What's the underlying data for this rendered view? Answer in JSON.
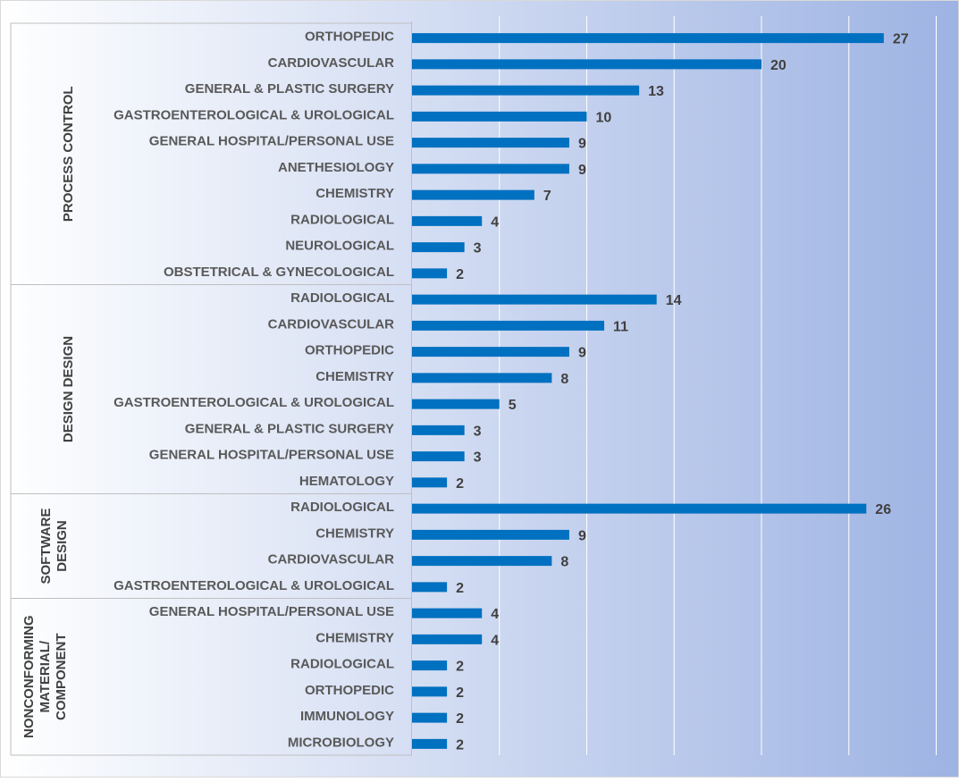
{
  "chart_data": {
    "type": "bar",
    "orientation": "horizontal",
    "grid": true,
    "xlim": [
      0,
      30
    ],
    "colors": {
      "bar": "#0070C0",
      "background_start": "#ffffff",
      "background_end": "#9DB3E3",
      "gridline": "#ffffff",
      "divider": "#BFBFBF"
    },
    "groups": [
      {
        "name": "PROCESS CONTROL",
        "items": [
          {
            "label": "ORTHOPEDIC",
            "value": 27
          },
          {
            "label": "CARDIOVASCULAR",
            "value": 20
          },
          {
            "label": "GENERAL & PLASTIC SURGERY",
            "value": 13
          },
          {
            "label": "GASTROENTEROLOGICAL & UROLOGICAL",
            "value": 10
          },
          {
            "label": "GENERAL HOSPITAL/PERSONAL USE",
            "value": 9
          },
          {
            "label": "ANETHESIOLOGY",
            "value": 9
          },
          {
            "label": "CHEMISTRY",
            "value": 7
          },
          {
            "label": "RADIOLOGICAL",
            "value": 4
          },
          {
            "label": "NEUROLOGICAL",
            "value": 3
          },
          {
            "label": "OBSTETRICAL & GYNECOLOGICAL",
            "value": 2
          }
        ]
      },
      {
        "name": "DESIGN DESIGN",
        "items": [
          {
            "label": "RADIOLOGICAL",
            "value": 14
          },
          {
            "label": "CARDIOVASCULAR",
            "value": 11
          },
          {
            "label": "ORTHOPEDIC",
            "value": 9
          },
          {
            "label": "CHEMISTRY",
            "value": 8
          },
          {
            "label": "GASTROENTEROLOGICAL & UROLOGICAL",
            "value": 5
          },
          {
            "label": "GENERAL & PLASTIC SURGERY",
            "value": 3
          },
          {
            "label": "GENERAL HOSPITAL/PERSONAL USE",
            "value": 3
          },
          {
            "label": "HEMATOLOGY",
            "value": 2
          }
        ]
      },
      {
        "name": "SOFTWARE DESIGN",
        "name_lines": [
          "SOFTWARE",
          "DESIGN"
        ],
        "items": [
          {
            "label": "RADIOLOGICAL",
            "value": 26
          },
          {
            "label": "CHEMISTRY",
            "value": 9
          },
          {
            "label": "CARDIOVASCULAR",
            "value": 8
          },
          {
            "label": "GASTROENTEROLOGICAL & UROLOGICAL",
            "value": 2
          }
        ]
      },
      {
        "name": "NONCONFORMING MATERIAL/ COMPONENT",
        "name_lines": [
          "NONCONFORMING",
          "MATERIAL/",
          "COMPONENT"
        ],
        "items": [
          {
            "label": "GENERAL HOSPITAL/PERSONAL USE",
            "value": 4
          },
          {
            "label": "CHEMISTRY",
            "value": 4
          },
          {
            "label": "RADIOLOGICAL",
            "value": 2
          },
          {
            "label": "ORTHOPEDIC",
            "value": 2
          },
          {
            "label": "IMMUNOLOGY",
            "value": 2
          },
          {
            "label": "MICROBIOLOGY",
            "value": 2
          }
        ]
      }
    ]
  }
}
